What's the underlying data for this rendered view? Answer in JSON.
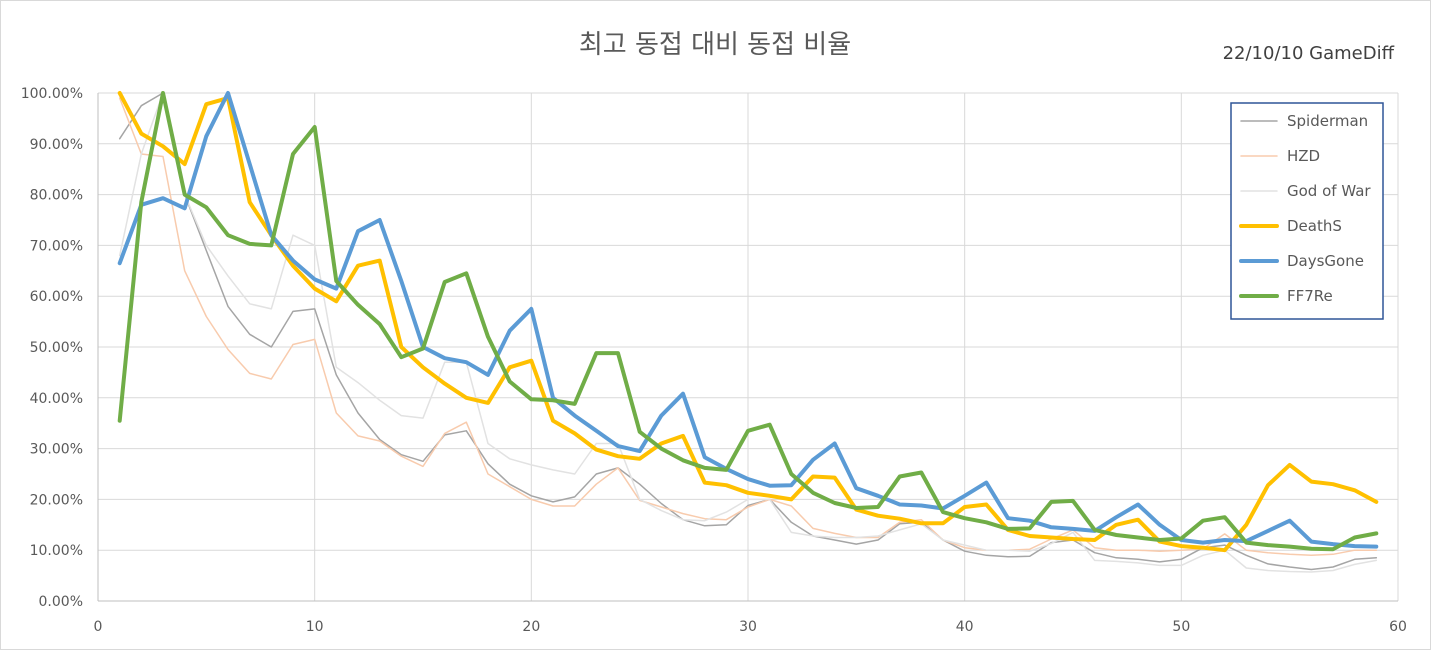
{
  "chart_data": {
    "type": "line",
    "title": "최고 동접 대비 동접 비율",
    "annotation": "22/10/10 GameDiff",
    "xlabel": "",
    "ylabel": "",
    "xlim": [
      0,
      60
    ],
    "ylim": [
      0,
      1
    ],
    "x_ticks": [
      "0",
      "10",
      "20",
      "30",
      "40",
      "50",
      "60"
    ],
    "y_ticks": [
      "0.00%",
      "10.00%",
      "20.00%",
      "30.00%",
      "40.00%",
      "50.00%",
      "60.00%",
      "70.00%",
      "80.00%",
      "90.00%",
      "100.00%"
    ],
    "grid": true,
    "legend_position": "top-right",
    "x": [
      1,
      2,
      3,
      4,
      5,
      6,
      7,
      8,
      9,
      10,
      11,
      12,
      13,
      14,
      15,
      16,
      17,
      18,
      19,
      20,
      21,
      22,
      23,
      24,
      25,
      26,
      27,
      28,
      29,
      30,
      31,
      32,
      33,
      34,
      35,
      36,
      37,
      38,
      39,
      40,
      41,
      42,
      43,
      44,
      45,
      46,
      47,
      48,
      49,
      50,
      51,
      52,
      53,
      54,
      55,
      56,
      57,
      58,
      59
    ],
    "series": [
      {
        "name": "Spiderman",
        "color": "#a5a5a5",
        "width": 1.5,
        "values": [
          0.91,
          0.975,
          1.0,
          0.8,
          0.69,
          0.58,
          0.525,
          0.5,
          0.57,
          0.575,
          0.445,
          0.37,
          0.318,
          0.288,
          0.275,
          0.327,
          0.335,
          0.27,
          0.23,
          0.207,
          0.195,
          0.205,
          0.25,
          0.262,
          0.23,
          0.192,
          0.16,
          0.148,
          0.15,
          0.188,
          0.2,
          0.155,
          0.128,
          0.12,
          0.112,
          0.12,
          0.152,
          0.155,
          0.12,
          0.098,
          0.09,
          0.087,
          0.088,
          0.115,
          0.12,
          0.095,
          0.085,
          0.082,
          0.077,
          0.082,
          0.105,
          0.11,
          0.09,
          0.073,
          0.067,
          0.062,
          0.067,
          0.082,
          0.085
        ]
      },
      {
        "name": "HZD",
        "color": "#f8cbad",
        "width": 1.5,
        "values": [
          0.99,
          0.88,
          0.875,
          0.65,
          0.56,
          0.495,
          0.448,
          0.437,
          0.505,
          0.515,
          0.37,
          0.325,
          0.315,
          0.285,
          0.265,
          0.33,
          0.352,
          0.25,
          0.225,
          0.2,
          0.187,
          0.187,
          0.23,
          0.262,
          0.198,
          0.185,
          0.172,
          0.162,
          0.16,
          0.185,
          0.2,
          0.187,
          0.143,
          0.133,
          0.125,
          0.125,
          0.155,
          0.16,
          0.12,
          0.105,
          0.1,
          0.1,
          0.102,
          0.122,
          0.14,
          0.105,
          0.1,
          0.1,
          0.098,
          0.1,
          0.103,
          0.132,
          0.1,
          0.095,
          0.092,
          0.09,
          0.092,
          0.1,
          0.1
        ]
      },
      {
        "name": "God of War",
        "color": "#e2e2e2",
        "width": 1.5,
        "values": [
          0.68,
          0.88,
          1.0,
          0.8,
          0.7,
          0.64,
          0.585,
          0.575,
          0.72,
          0.7,
          0.46,
          0.43,
          0.395,
          0.365,
          0.36,
          0.47,
          0.47,
          0.31,
          0.28,
          0.268,
          0.258,
          0.25,
          0.31,
          0.31,
          0.2,
          0.178,
          0.16,
          0.158,
          0.175,
          0.2,
          0.2,
          0.135,
          0.128,
          0.125,
          0.125,
          0.128,
          0.14,
          0.152,
          0.12,
          0.11,
          0.1,
          0.1,
          0.098,
          0.113,
          0.135,
          0.08,
          0.078,
          0.075,
          0.07,
          0.07,
          0.09,
          0.1,
          0.065,
          0.06,
          0.058,
          0.057,
          0.06,
          0.072,
          0.08
        ]
      },
      {
        "name": "DeathS",
        "color": "#ffc000",
        "width": 4,
        "values": [
          1.0,
          0.92,
          0.895,
          0.86,
          0.978,
          0.99,
          0.785,
          0.72,
          0.66,
          0.615,
          0.59,
          0.66,
          0.67,
          0.5,
          0.46,
          0.428,
          0.4,
          0.39,
          0.46,
          0.473,
          0.355,
          0.33,
          0.298,
          0.285,
          0.28,
          0.31,
          0.325,
          0.233,
          0.228,
          0.213,
          0.207,
          0.2,
          0.245,
          0.243,
          0.18,
          0.168,
          0.162,
          0.153,
          0.153,
          0.185,
          0.19,
          0.14,
          0.128,
          0.125,
          0.122,
          0.12,
          0.15,
          0.16,
          0.117,
          0.108,
          0.105,
          0.1,
          0.15,
          0.228,
          0.268,
          0.235,
          0.23,
          0.218,
          0.195
        ]
      },
      {
        "name": "DaysGone",
        "color": "#5b9bd5",
        "width": 4,
        "values": [
          0.665,
          0.78,
          0.793,
          0.773,
          0.915,
          1.0,
          0.86,
          0.72,
          0.67,
          0.633,
          0.615,
          0.728,
          0.75,
          0.63,
          0.5,
          0.478,
          0.47,
          0.445,
          0.532,
          0.575,
          0.4,
          0.365,
          0.335,
          0.305,
          0.295,
          0.365,
          0.408,
          0.283,
          0.26,
          0.24,
          0.227,
          0.228,
          0.278,
          0.31,
          0.222,
          0.207,
          0.19,
          0.188,
          0.182,
          0.207,
          0.233,
          0.163,
          0.158,
          0.145,
          0.142,
          0.138,
          0.165,
          0.19,
          0.15,
          0.12,
          0.115,
          0.12,
          0.118,
          0.138,
          0.158,
          0.117,
          0.112,
          0.108,
          0.107
        ]
      },
      {
        "name": "FF7Re",
        "color": "#70ad47",
        "width": 4,
        "values": [
          0.355,
          0.785,
          1.0,
          0.8,
          0.775,
          0.72,
          0.703,
          0.7,
          0.88,
          0.933,
          0.63,
          0.583,
          0.545,
          0.48,
          0.497,
          0.628,
          0.645,
          0.52,
          0.432,
          0.397,
          0.395,
          0.388,
          0.488,
          0.488,
          0.333,
          0.3,
          0.277,
          0.262,
          0.258,
          0.335,
          0.347,
          0.25,
          0.213,
          0.193,
          0.183,
          0.185,
          0.245,
          0.253,
          0.175,
          0.163,
          0.155,
          0.142,
          0.143,
          0.195,
          0.197,
          0.14,
          0.13,
          0.125,
          0.12,
          0.123,
          0.158,
          0.165,
          0.115,
          0.11,
          0.107,
          0.103,
          0.102,
          0.125,
          0.133
        ]
      }
    ]
  }
}
